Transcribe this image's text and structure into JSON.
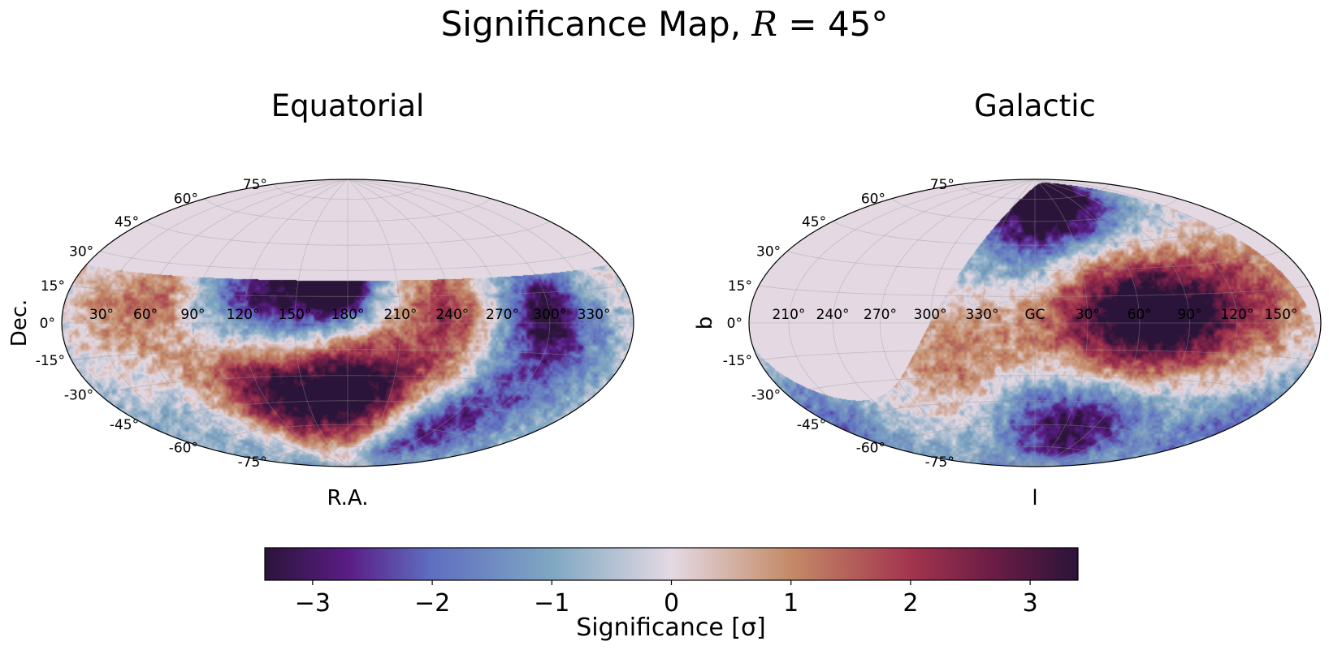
{
  "figure": {
    "title_prefix": "Significance Map, ",
    "title_var": "R",
    "title_suffix": " = 45°"
  },
  "colormap": {
    "name": "twilight_shifted",
    "stops": [
      {
        "v": -3.4,
        "color": "#2b1439"
      },
      {
        "v": -2.7,
        "color": "#5a1d86"
      },
      {
        "v": -2.0,
        "color": "#5f6fc1"
      },
      {
        "v": -1.0,
        "color": "#7fa7c2"
      },
      {
        "v": 0.0,
        "color": "#e4d9e3"
      },
      {
        "v": 1.0,
        "color": "#c48a67"
      },
      {
        "v": 2.0,
        "color": "#a3344e"
      },
      {
        "v": 2.7,
        "color": "#6a1c45"
      },
      {
        "v": 3.4,
        "color": "#2b1439"
      }
    ]
  },
  "chart_data": [
    {
      "type": "heatmap",
      "projection": "hammer",
      "title": "Equatorial",
      "xlabel": "R.A.",
      "ylabel": "Dec.",
      "lon_tick_labels": [
        "330°",
        "300°",
        "270°",
        "240°",
        "210°",
        "180°",
        "150°",
        "120°",
        "90°",
        "60°",
        "30°"
      ],
      "lat_tick_labels": [
        "75°",
        "60°",
        "45°",
        "30°",
        "15°",
        "0°",
        "-15°",
        "-30°",
        "-45°",
        "-60°",
        "-75°"
      ],
      "grid": true,
      "coverage": {
        "dec_max": 24
      },
      "features": [
        {
          "lon": 185,
          "lat": 20,
          "sigma": -3.2,
          "size": 12
        },
        {
          "lon": 215,
          "lat": 15,
          "sigma": -2.2,
          "size": 25
        },
        {
          "lon": 238,
          "lat": 8,
          "sigma": -1.6,
          "size": 30
        },
        {
          "lon": 180,
          "lat": 0,
          "sigma": -1.0,
          "size": 30
        },
        {
          "lon": 65,
          "lat": 10,
          "sigma": -2.0,
          "size": 15
        },
        {
          "lon": 60,
          "lat": -5,
          "sigma": -1.2,
          "size": 22
        },
        {
          "lon": 100,
          "lat": -62,
          "sigma": -2.2,
          "size": 18
        },
        {
          "lon": 85,
          "lat": -35,
          "sigma": -1.3,
          "size": 28
        },
        {
          "lon": 300,
          "lat": -50,
          "sigma": -1.2,
          "size": 30
        },
        {
          "lon": 30,
          "lat": -15,
          "sigma": -1.0,
          "size": 25
        },
        {
          "lon": 125,
          "lat": 12,
          "sigma": 1.8,
          "size": 18
        },
        {
          "lon": 118,
          "lat": -20,
          "sigma": 1.3,
          "size": 20
        },
        {
          "lon": 240,
          "lat": -30,
          "sigma": 2.2,
          "size": 22
        },
        {
          "lon": 190,
          "lat": -32,
          "sigma": 2.3,
          "size": 25
        },
        {
          "lon": 160,
          "lat": -35,
          "sigma": 2.3,
          "size": 22
        },
        {
          "lon": 220,
          "lat": -45,
          "sigma": 1.6,
          "size": 25
        },
        {
          "lon": 320,
          "lat": 0,
          "sigma": 1.2,
          "size": 25
        },
        {
          "lon": 290,
          "lat": 15,
          "sigma": 1.0,
          "size": 15
        },
        {
          "lon": 280,
          "lat": -25,
          "sigma": 0.8,
          "size": 20
        }
      ]
    },
    {
      "type": "heatmap",
      "projection": "hammer",
      "title": "Galactic",
      "xlabel": "l",
      "ylabel": "b",
      "lon_tick_labels": [
        "150°",
        "120°",
        "90°",
        "60°",
        "30°",
        "GC",
        "330°",
        "300°",
        "270°",
        "240°",
        "210°"
      ],
      "lat_tick_labels": [
        "75°",
        "60°",
        "45°",
        "30°",
        "15°",
        "0°",
        "-15°",
        "-30°",
        "-45°",
        "-60°",
        "-75°"
      ],
      "grid": true,
      "features": [
        {
          "lon": 350,
          "lat": 82,
          "sigma": -3.0,
          "size": 12
        },
        {
          "lon": 340,
          "lat": 62,
          "sigma": -2.0,
          "size": 22
        },
        {
          "lon": 10,
          "lat": 50,
          "sigma": -1.5,
          "size": 22
        },
        {
          "lon": 300,
          "lat": 55,
          "sigma": -1.2,
          "size": 25
        },
        {
          "lon": 320,
          "lat": -60,
          "sigma": -2.0,
          "size": 20
        },
        {
          "lon": 0,
          "lat": -55,
          "sigma": -1.4,
          "size": 25
        },
        {
          "lon": 160,
          "lat": -40,
          "sigma": -1.5,
          "size": 20
        },
        {
          "lon": 270,
          "lat": -55,
          "sigma": -1.0,
          "size": 25
        },
        {
          "lon": 200,
          "lat": -45,
          "sigma": -1.2,
          "size": 15
        },
        {
          "lon": 268,
          "lat": 3,
          "sigma": 2.2,
          "size": 22
        },
        {
          "lon": 300,
          "lat": 18,
          "sigma": 2.0,
          "size": 25
        },
        {
          "lon": 330,
          "lat": 10,
          "sigma": 1.7,
          "size": 25
        },
        {
          "lon": 225,
          "lat": 12,
          "sigma": 1.8,
          "size": 22
        },
        {
          "lon": 290,
          "lat": -5,
          "sigma": 1.2,
          "size": 22
        },
        {
          "lon": 50,
          "lat": -25,
          "sigma": 1.2,
          "size": 20
        },
        {
          "lon": 15,
          "lat": -10,
          "sigma": 0.7,
          "size": 20
        },
        {
          "lon": 320,
          "lat": -20,
          "sigma": 0.7,
          "size": 20
        }
      ]
    },
    {
      "type": "colorbar",
      "label": "Significance [σ]",
      "vmin": -3.4,
      "vmax": 3.4,
      "tick_labels": [
        "−3",
        "−2",
        "−1",
        "0",
        "1",
        "2",
        "3"
      ]
    }
  ]
}
